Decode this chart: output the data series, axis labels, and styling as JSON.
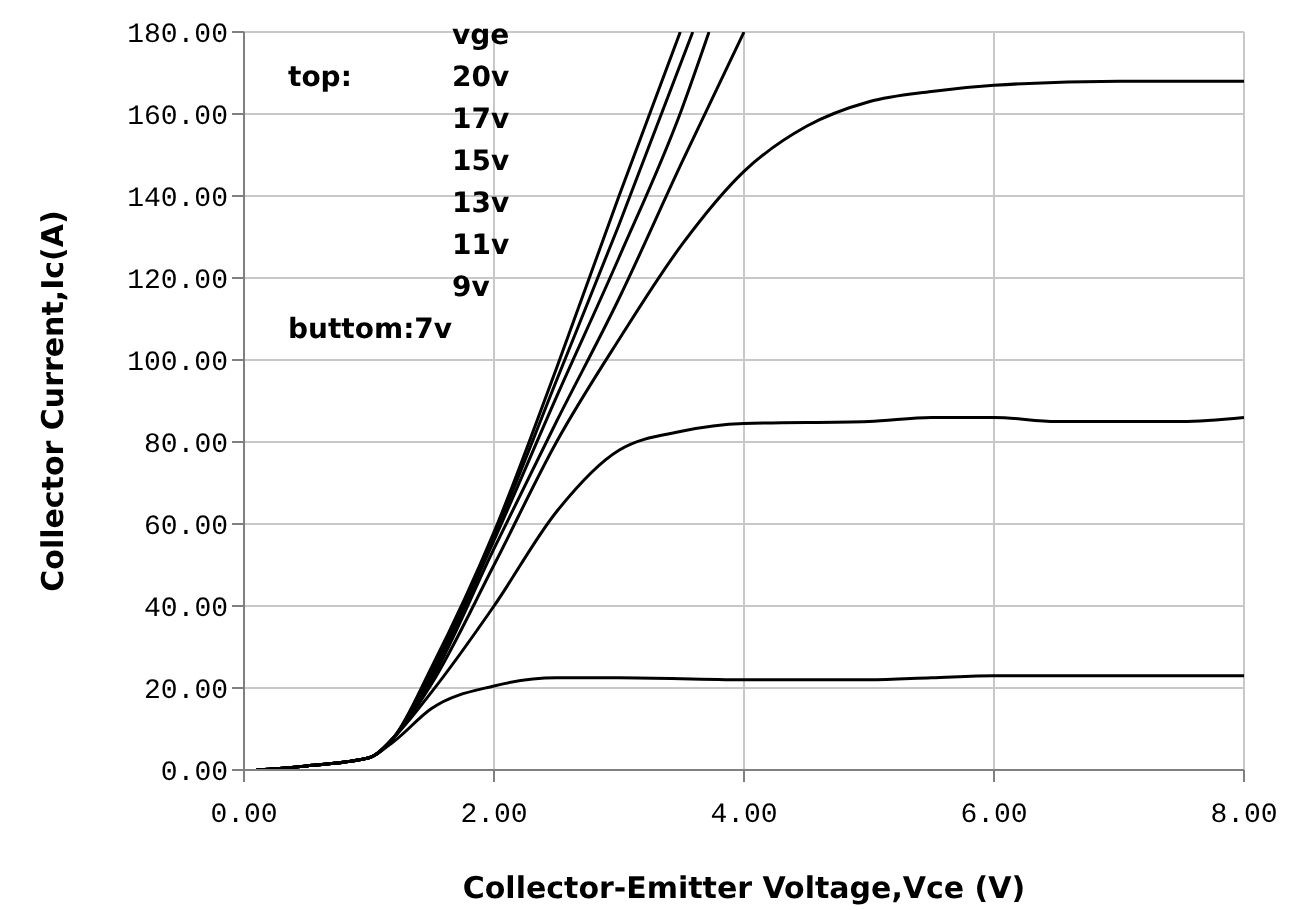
{
  "chart_data": {
    "type": "line",
    "xlabel": "Collector-Emitter Voltage,Vce (V)",
    "ylabel": "Collector Current,Ic(A)",
    "annotations": [
      "vge",
      "top:",
      "20v",
      "17v",
      "15v",
      "13v",
      "11v",
      "9v",
      "buttom:7v"
    ],
    "xlim": [
      0,
      8
    ],
    "ylim": [
      0,
      180
    ],
    "xticks": [
      {
        "value": 0,
        "label": "0.00"
      },
      {
        "value": 2,
        "label": "2.00"
      },
      {
        "value": 4,
        "label": "4.00"
      },
      {
        "value": 6,
        "label": "6.00"
      },
      {
        "value": 8,
        "label": "8.00"
      }
    ],
    "yticks": [
      {
        "value": 0,
        "label": "0.00"
      },
      {
        "value": 20,
        "label": "20.00"
      },
      {
        "value": 40,
        "label": "40.00"
      },
      {
        "value": 60,
        "label": "60.00"
      },
      {
        "value": 80,
        "label": "80.00"
      },
      {
        "value": 100,
        "label": "100.00"
      },
      {
        "value": 120,
        "label": "120.00"
      },
      {
        "value": 140,
        "label": "140.00"
      },
      {
        "value": 160,
        "label": "160.00"
      },
      {
        "value": 180,
        "label": "180.00"
      }
    ],
    "grid": true,
    "legend": false,
    "marker": "none",
    "line_style": "solid",
    "series": [
      {
        "color": "#000000",
        "x": [
          0.1,
          0.5,
          1,
          1.2,
          1.5,
          2,
          2.5,
          3,
          3.49
        ],
        "values": [
          0,
          1,
          3,
          8,
          25,
          58,
          98,
          140,
          180
        ]
      },
      {
        "color": "#000000",
        "x": [
          0.1,
          0.5,
          1,
          1.2,
          1.5,
          2,
          2.5,
          3,
          3.59
        ],
        "values": [
          0,
          1,
          3,
          8,
          24,
          57,
          95,
          133,
          180
        ]
      },
      {
        "color": "#000000",
        "x": [
          0.1,
          0.5,
          1,
          1.2,
          1.5,
          2,
          2.5,
          3,
          3.5,
          3.72
        ],
        "values": [
          0,
          1,
          3,
          8,
          23,
          56,
          91,
          125,
          161,
          180
        ]
      },
      {
        "color": "#000000",
        "x": [
          0.1,
          0.5,
          1,
          1.2,
          1.5,
          2,
          2.5,
          3,
          3.5,
          4
        ],
        "values": [
          0,
          1,
          3,
          8,
          22,
          54,
          85,
          115,
          148,
          180
        ]
      },
      {
        "color": "#000000",
        "x": [
          0.1,
          0.5,
          1,
          1.2,
          1.5,
          2,
          2.5,
          3,
          3.5,
          4,
          4.5,
          5,
          5.5,
          6,
          7,
          8
        ],
        "values": [
          0,
          1,
          3,
          8,
          21,
          50,
          80,
          105,
          128,
          146,
          157,
          163,
          165.5,
          167,
          168,
          168
        ]
      },
      {
        "color": "#000000",
        "x": [
          0.1,
          0.5,
          1,
          1.2,
          1.5,
          2,
          2.5,
          3,
          3.5,
          4,
          5,
          5.5,
          6,
          6.5,
          7.5,
          8
        ],
        "values": [
          0,
          1,
          3,
          8,
          19,
          40,
          63,
          78,
          82.6,
          84.5,
          85,
          86,
          86,
          85,
          85,
          86
        ]
      },
      {
        "color": "#000000",
        "x": [
          0.1,
          0.5,
          1,
          1.2,
          1.5,
          2,
          2.5,
          3,
          4,
          5,
          5.5,
          6,
          8
        ],
        "values": [
          0,
          1,
          3,
          7,
          15,
          20.5,
          22.5,
          22.5,
          22,
          22,
          22.5,
          23,
          23
        ]
      }
    ]
  }
}
